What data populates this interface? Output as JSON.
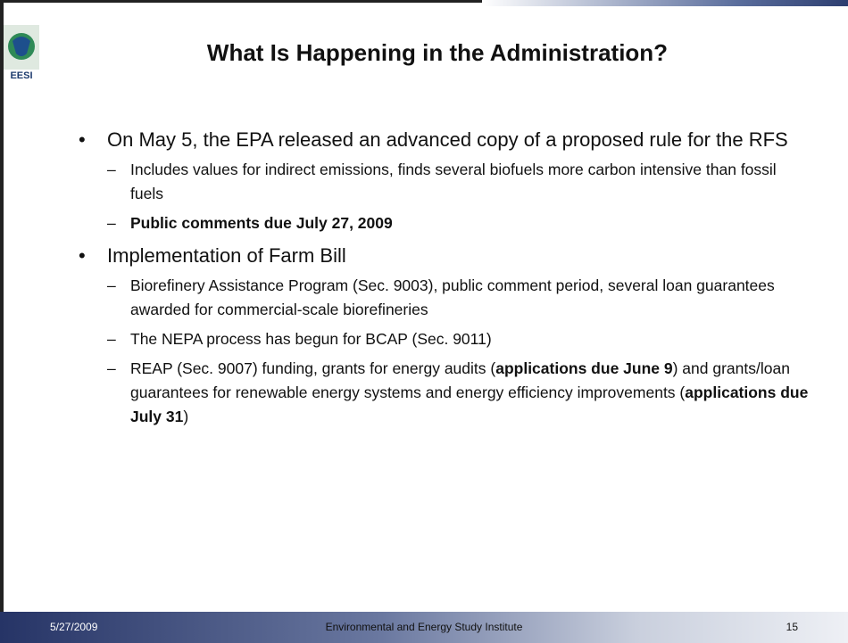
{
  "logo": {
    "label": "EESI"
  },
  "title": "What Is Happening in the Administration?",
  "bullets": [
    {
      "text": "On May 5, the EPA released an advanced copy of a proposed rule for the RFS",
      "sub": [
        {
          "runs": [
            {
              "text": "Includes values for indirect emissions, finds several biofuels more carbon intensive than fossil fuels"
            }
          ]
        },
        {
          "runs": [
            {
              "text": "Public comments due July 27, 2009",
              "bold": true
            }
          ]
        }
      ]
    },
    {
      "text": "Implementation of Farm Bill",
      "sub": [
        {
          "runs": [
            {
              "text": "Biorefinery Assistance Program (Sec. 9003), public comment period, several loan guarantees awarded for commercial-scale biorefineries"
            }
          ]
        },
        {
          "runs": [
            {
              "text": "The NEPA process has begun for BCAP (Sec. 9011)"
            }
          ]
        },
        {
          "runs": [
            {
              "text": "REAP (Sec. 9007) funding, grants for energy audits ("
            },
            {
              "text": "applications due June 9",
              "bold": true
            },
            {
              "text": ") and grants/loan guarantees for renewable energy systems and energy efficiency improvements ("
            },
            {
              "text": "applications due July 31",
              "bold": true
            },
            {
              "text": ")"
            }
          ]
        }
      ]
    }
  ],
  "footer": {
    "date": "5/27/2009",
    "org": "Environmental and Energy Study Institute",
    "page": "15"
  }
}
